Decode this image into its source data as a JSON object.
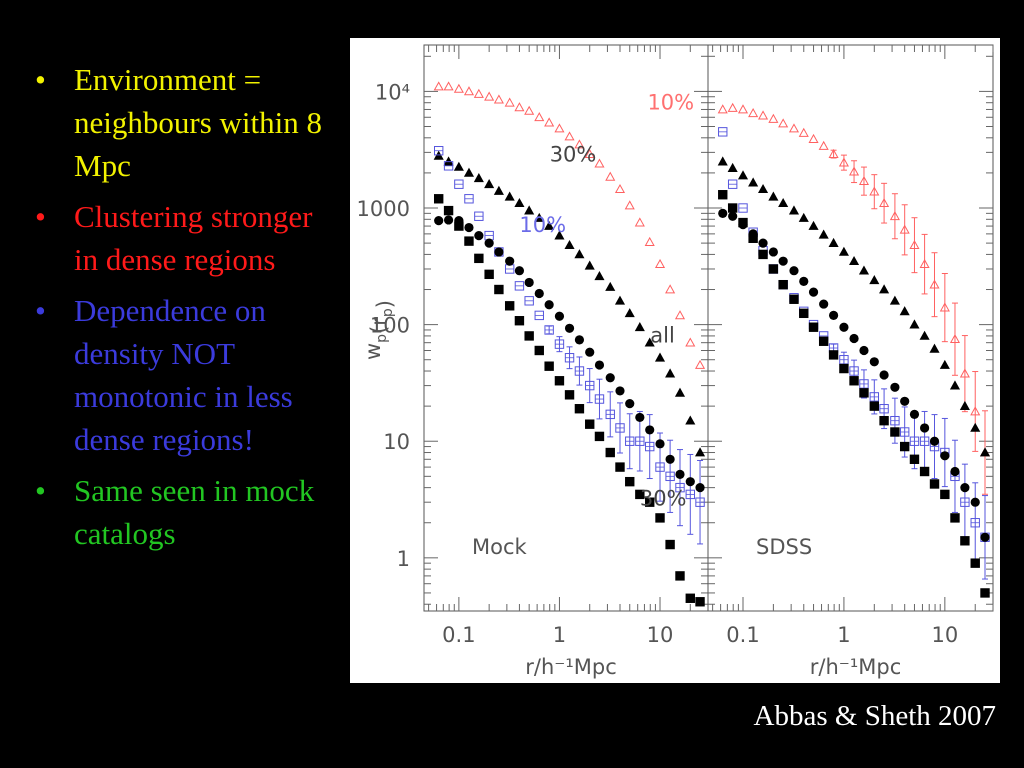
{
  "bullets": [
    {
      "text": "Environment = neighbours within 8 Mpc",
      "color": "#f2f200"
    },
    {
      "text": "Clustering stronger in dense regions",
      "color": "#ff1a1a"
    },
    {
      "text": "Dependence on density NOT monotonic in less dense regions!",
      "color": "#3b3bdc"
    },
    {
      "text": "Same seen in mock catalogs",
      "color": "#22c622"
    }
  ],
  "credit": "Abbas & Sheth 2007",
  "chart_data": [
    {
      "type": "scatter",
      "panel_label": "Mock",
      "xlabel": "r/h⁻¹Mpc",
      "ylabel": "w_p(r_p)",
      "xscale": "log",
      "yscale": "log",
      "xlim": [
        0.045,
        30
      ],
      "ylim": [
        0.35,
        25000
      ],
      "xticks": [
        "0.1",
        "1",
        "10"
      ],
      "yticks": [
        "1",
        "10",
        "100",
        "1000",
        "10⁴"
      ],
      "annotations": [
        {
          "text": "10%",
          "color": "#ff7070",
          "x": 7.5,
          "y": 7000
        },
        {
          "text": "30%",
          "color": "#444444",
          "x": 0.8,
          "y": 2500
        },
        {
          "text": "10%",
          "color": "#6b6be8",
          "x": 0.4,
          "y": 620
        },
        {
          "text": "all",
          "color": "#444444",
          "x": 8,
          "y": 70
        },
        {
          "text": "30%",
          "color": "#444444",
          "x": 6.3,
          "y": 2.8
        }
      ],
      "series": [
        {
          "marker": "triangle-open",
          "color": "#ff6060",
          "x": [
            0.063,
            0.079,
            0.1,
            0.126,
            0.158,
            0.2,
            0.25,
            0.32,
            0.4,
            0.5,
            0.63,
            0.79,
            1.0,
            1.26,
            1.58,
            2.0,
            2.5,
            3.2,
            4.0,
            5.0,
            6.3,
            7.9,
            10,
            12.6,
            15.8,
            20,
            25
          ],
          "y": [
            11000,
            11000,
            10500,
            10000,
            9500,
            9000,
            8500,
            8000,
            7300,
            6800,
            6000,
            5400,
            4800,
            4100,
            3500,
            2900,
            2400,
            1850,
            1450,
            1050,
            750,
            510,
            330,
            200,
            120,
            70,
            45
          ]
        },
        {
          "marker": "triangle-filled",
          "color": "#000000",
          "x": [
            0.063,
            0.079,
            0.1,
            0.126,
            0.158,
            0.2,
            0.25,
            0.32,
            0.4,
            0.5,
            0.63,
            0.79,
            1.0,
            1.26,
            1.58,
            2.0,
            2.5,
            3.2,
            4.0,
            5.0,
            6.3,
            7.9,
            10,
            12.6,
            15.8,
            20,
            25
          ],
          "y": [
            2800,
            2500,
            2250,
            2000,
            1800,
            1600,
            1400,
            1250,
            1100,
            950,
            820,
            700,
            580,
            480,
            400,
            320,
            260,
            210,
            160,
            125,
            95,
            70,
            52,
            38,
            26,
            15,
            8
          ]
        },
        {
          "marker": "square-open",
          "color": "#5555dd",
          "errorbars": true,
          "x": [
            0.063,
            0.079,
            0.1,
            0.126,
            0.158,
            0.2,
            0.25,
            0.32,
            0.4,
            0.5,
            0.63,
            0.79,
            1.0,
            1.26,
            1.58,
            2.0,
            2.5,
            3.2,
            4.0,
            5.0,
            6.3,
            7.9,
            10,
            12.6,
            15.8,
            20,
            25
          ],
          "y": [
            3100,
            2300,
            1600,
            1200,
            850,
            580,
            420,
            300,
            215,
            160,
            120,
            90,
            68,
            52,
            40,
            30,
            23,
            17,
            13,
            10,
            10,
            9,
            6,
            5,
            4,
            3.5,
            3
          ]
        },
        {
          "marker": "circle-filled",
          "color": "#000000",
          "x": [
            0.063,
            0.079,
            0.1,
            0.126,
            0.158,
            0.2,
            0.25,
            0.32,
            0.4,
            0.5,
            0.63,
            0.79,
            1.0,
            1.26,
            1.58,
            2.0,
            2.5,
            3.2,
            4.0,
            5.0,
            6.3,
            7.9,
            10,
            12.6,
            15.8,
            20,
            25
          ],
          "y": [
            780,
            790,
            780,
            680,
            580,
            500,
            420,
            350,
            290,
            230,
            185,
            148,
            118,
            93,
            74,
            58,
            45,
            35,
            27,
            21,
            16,
            12.5,
            9.5,
            7,
            5.2,
            4.5,
            4
          ]
        },
        {
          "marker": "square-filled",
          "color": "#000000",
          "x": [
            0.063,
            0.079,
            0.1,
            0.126,
            0.158,
            0.2,
            0.25,
            0.32,
            0.4,
            0.5,
            0.63,
            0.79,
            1.0,
            1.26,
            1.58,
            2.0,
            2.5,
            3.2,
            4.0,
            5.0,
            6.3,
            7.9,
            10,
            12.6,
            15.8,
            20,
            25
          ],
          "y": [
            1200,
            950,
            700,
            520,
            370,
            270,
            200,
            145,
            108,
            80,
            60,
            44,
            33,
            25,
            19,
            14,
            11,
            8,
            6,
            4.5,
            3.5,
            3,
            2.2,
            1.3,
            0.7,
            0.45,
            0.42
          ]
        }
      ]
    },
    {
      "type": "scatter",
      "panel_label": "SDSS",
      "xlabel": "r/h⁻¹Mpc",
      "xscale": "log",
      "yscale": "log",
      "xlim": [
        0.045,
        30
      ],
      "ylim": [
        0.35,
        25000
      ],
      "xticks": [
        "0.1",
        "1",
        "10"
      ],
      "series": [
        {
          "marker": "triangle-open",
          "color": "#ff6060",
          "errorbars": true,
          "x": [
            0.063,
            0.079,
            0.1,
            0.126,
            0.158,
            0.2,
            0.25,
            0.32,
            0.4,
            0.5,
            0.63,
            0.79,
            1.0,
            1.26,
            1.58,
            2.0,
            2.5,
            3.2,
            4.0,
            5.0,
            6.3,
            7.9,
            10,
            12.6,
            15.8,
            20,
            25
          ],
          "y": [
            7000,
            7200,
            7000,
            6500,
            6200,
            5800,
            5300,
            4800,
            4400,
            3900,
            3400,
            2900,
            2450,
            2050,
            1700,
            1380,
            1100,
            850,
            650,
            480,
            330,
            220,
            140,
            75,
            38,
            18,
            8
          ]
        },
        {
          "marker": "triangle-filled",
          "color": "#000000",
          "x": [
            0.063,
            0.079,
            0.1,
            0.126,
            0.158,
            0.2,
            0.25,
            0.32,
            0.4,
            0.5,
            0.63,
            0.79,
            1.0,
            1.26,
            1.58,
            2.0,
            2.5,
            3.2,
            4.0,
            5.0,
            6.3,
            7.9,
            10,
            12.6,
            15.8,
            20,
            25
          ],
          "y": [
            2500,
            2200,
            1900,
            1650,
            1450,
            1250,
            1100,
            950,
            820,
            700,
            590,
            500,
            420,
            350,
            290,
            240,
            200,
            160,
            130,
            100,
            80,
            62,
            45,
            30,
            20,
            13,
            8
          ]
        },
        {
          "marker": "square-open",
          "color": "#5555dd",
          "errorbars": true,
          "x": [
            0.063,
            0.079,
            0.1,
            0.126,
            0.158,
            0.2,
            0.25,
            0.32,
            0.4,
            0.5,
            0.63,
            0.79,
            1.0,
            1.26,
            1.58,
            2.0,
            2.5,
            3.2,
            4.0,
            5.0,
            6.3,
            7.9,
            10,
            12.6,
            15.8,
            20,
            25
          ],
          "y": [
            4500,
            1600,
            1000,
            620,
            430,
            300,
            220,
            170,
            130,
            100,
            80,
            63,
            50,
            40,
            31,
            24,
            19,
            15,
            12,
            10,
            10,
            9,
            8,
            5,
            3,
            2,
            1.5
          ]
        },
        {
          "marker": "circle-filled",
          "color": "#000000",
          "x": [
            0.063,
            0.079,
            0.1,
            0.126,
            0.158,
            0.2,
            0.25,
            0.32,
            0.4,
            0.5,
            0.63,
            0.79,
            1.0,
            1.26,
            1.58,
            2.0,
            2.5,
            3.2,
            4.0,
            5.0,
            6.3,
            7.9,
            10,
            12.6,
            15.8,
            20,
            25
          ],
          "y": [
            900,
            850,
            720,
            600,
            500,
            420,
            350,
            290,
            235,
            190,
            150,
            120,
            95,
            76,
            60,
            48,
            37,
            29,
            22,
            17,
            13,
            10,
            7.5,
            5.5,
            4,
            3,
            1.5
          ]
        },
        {
          "marker": "square-filled",
          "color": "#000000",
          "x": [
            0.063,
            0.079,
            0.1,
            0.126,
            0.158,
            0.2,
            0.25,
            0.32,
            0.4,
            0.5,
            0.63,
            0.79,
            1.0,
            1.26,
            1.58,
            2.0,
            2.5,
            3.2,
            4.0,
            5.0,
            6.3,
            7.9,
            10,
            12.6,
            15.8,
            20,
            25
          ],
          "y": [
            1300,
            1000,
            750,
            550,
            400,
            300,
            220,
            165,
            125,
            95,
            72,
            55,
            42,
            33,
            26,
            20,
            15,
            12,
            9,
            7,
            5.5,
            4.3,
            3.5,
            2.2,
            1.4,
            0.9,
            0.5
          ]
        }
      ]
    }
  ]
}
